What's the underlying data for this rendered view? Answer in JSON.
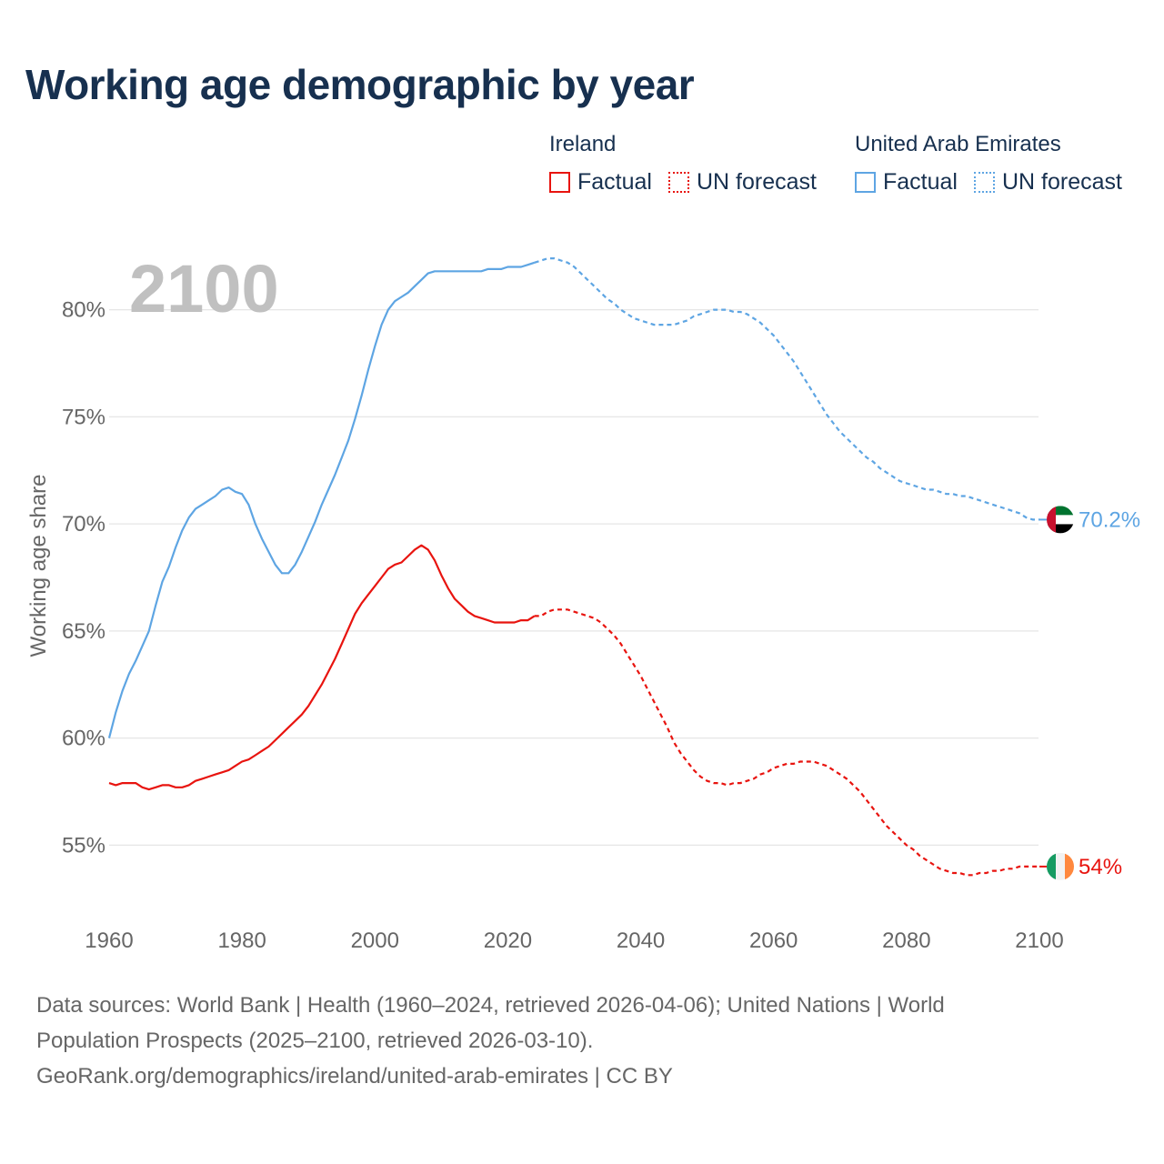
{
  "title": "Working age demographic by year",
  "legend": {
    "groups": [
      {
        "country": "Ireland",
        "factual_label": "Factual",
        "forecast_label": "UN forecast",
        "color": "#e8140f"
      },
      {
        "country": "United Arab Emirates",
        "factual_label": "Factual",
        "forecast_label": "UN forecast",
        "color": "#5ea5e3"
      }
    ]
  },
  "year_label": "2100",
  "sources": {
    "line1": "Data sources: World Bank | Health (1960–2024, retrieved 2026-04-06); United Nations | World",
    "line2": "Population Prospects (2025–2100, retrieved 2026-03-10).",
    "line3": "GeoRank.org/demographics/ireland/united-arab-emirates | CC BY"
  },
  "colors": {
    "ireland": "#e8140f",
    "uae": "#5ea5e3",
    "title": "#17304f",
    "axis_text": "#666666",
    "grid": "#e6e6e6",
    "year_watermark": "#c0c0c0"
  },
  "chart_data": {
    "type": "line",
    "title": "Working age demographic by year",
    "xlabel": "",
    "ylabel": "Working age share",
    "xlim": [
      1960,
      2100
    ],
    "ylim": [
      52,
      83
    ],
    "x_ticks": [
      1960,
      1980,
      2000,
      2020,
      2040,
      2060,
      2080,
      2100
    ],
    "x_tick_labels": [
      "1960",
      "1980",
      "2000",
      "2020",
      "2040",
      "2060",
      "2080",
      "2100"
    ],
    "y_ticks": [
      55,
      60,
      65,
      70,
      75,
      80
    ],
    "y_tick_labels": [
      "55%",
      "60%",
      "65%",
      "70%",
      "75%",
      "80%"
    ],
    "factual_end_year": 2024,
    "series": [
      {
        "name": "Ireland",
        "end_label": "54%",
        "points": [
          [
            1960,
            57.9
          ],
          [
            1961,
            57.8
          ],
          [
            1962,
            57.9
          ],
          [
            1963,
            57.9
          ],
          [
            1964,
            57.9
          ],
          [
            1965,
            57.7
          ],
          [
            1966,
            57.6
          ],
          [
            1967,
            57.7
          ],
          [
            1968,
            57.8
          ],
          [
            1969,
            57.8
          ],
          [
            1970,
            57.7
          ],
          [
            1971,
            57.7
          ],
          [
            1972,
            57.8
          ],
          [
            1973,
            58.0
          ],
          [
            1974,
            58.1
          ],
          [
            1975,
            58.2
          ],
          [
            1976,
            58.3
          ],
          [
            1977,
            58.4
          ],
          [
            1978,
            58.5
          ],
          [
            1979,
            58.7
          ],
          [
            1980,
            58.9
          ],
          [
            1981,
            59.0
          ],
          [
            1982,
            59.2
          ],
          [
            1983,
            59.4
          ],
          [
            1984,
            59.6
          ],
          [
            1985,
            59.9
          ],
          [
            1986,
            60.2
          ],
          [
            1987,
            60.5
          ],
          [
            1988,
            60.8
          ],
          [
            1989,
            61.1
          ],
          [
            1990,
            61.5
          ],
          [
            1991,
            62.0
          ],
          [
            1992,
            62.5
          ],
          [
            1993,
            63.1
          ],
          [
            1994,
            63.7
          ],
          [
            1995,
            64.4
          ],
          [
            1996,
            65.1
          ],
          [
            1997,
            65.8
          ],
          [
            1998,
            66.3
          ],
          [
            1999,
            66.7
          ],
          [
            2000,
            67.1
          ],
          [
            2001,
            67.5
          ],
          [
            2002,
            67.9
          ],
          [
            2003,
            68.1
          ],
          [
            2004,
            68.2
          ],
          [
            2005,
            68.5
          ],
          [
            2006,
            68.8
          ],
          [
            2007,
            69.0
          ],
          [
            2008,
            68.8
          ],
          [
            2009,
            68.3
          ],
          [
            2010,
            67.6
          ],
          [
            2011,
            67.0
          ],
          [
            2012,
            66.5
          ],
          [
            2013,
            66.2
          ],
          [
            2014,
            65.9
          ],
          [
            2015,
            65.7
          ],
          [
            2016,
            65.6
          ],
          [
            2017,
            65.5
          ],
          [
            2018,
            65.4
          ],
          [
            2019,
            65.4
          ],
          [
            2020,
            65.4
          ],
          [
            2021,
            65.4
          ],
          [
            2022,
            65.5
          ],
          [
            2023,
            65.5
          ],
          [
            2024,
            65.7
          ],
          [
            2025,
            65.7
          ],
          [
            2026,
            65.9
          ],
          [
            2027,
            66.0
          ],
          [
            2028,
            66.0
          ],
          [
            2029,
            66.0
          ],
          [
            2030,
            65.9
          ],
          [
            2031,
            65.8
          ],
          [
            2032,
            65.7
          ],
          [
            2033,
            65.6
          ],
          [
            2034,
            65.4
          ],
          [
            2035,
            65.1
          ],
          [
            2036,
            64.8
          ],
          [
            2037,
            64.4
          ],
          [
            2038,
            63.9
          ],
          [
            2039,
            63.4
          ],
          [
            2040,
            62.9
          ],
          [
            2041,
            62.3
          ],
          [
            2042,
            61.7
          ],
          [
            2043,
            61.1
          ],
          [
            2044,
            60.5
          ],
          [
            2045,
            59.8
          ],
          [
            2046,
            59.3
          ],
          [
            2047,
            58.9
          ],
          [
            2048,
            58.5
          ],
          [
            2049,
            58.2
          ],
          [
            2050,
            58.0
          ],
          [
            2051,
            57.9
          ],
          [
            2052,
            57.9
          ],
          [
            2053,
            57.8
          ],
          [
            2054,
            57.9
          ],
          [
            2055,
            57.9
          ],
          [
            2056,
            58.0
          ],
          [
            2057,
            58.1
          ],
          [
            2058,
            58.3
          ],
          [
            2059,
            58.4
          ],
          [
            2060,
            58.6
          ],
          [
            2061,
            58.7
          ],
          [
            2062,
            58.8
          ],
          [
            2063,
            58.8
          ],
          [
            2064,
            58.9
          ],
          [
            2065,
            58.9
          ],
          [
            2066,
            58.9
          ],
          [
            2067,
            58.8
          ],
          [
            2068,
            58.7
          ],
          [
            2069,
            58.5
          ],
          [
            2070,
            58.3
          ],
          [
            2071,
            58.1
          ],
          [
            2072,
            57.8
          ],
          [
            2073,
            57.5
          ],
          [
            2074,
            57.1
          ],
          [
            2075,
            56.7
          ],
          [
            2076,
            56.3
          ],
          [
            2077,
            55.9
          ],
          [
            2078,
            55.6
          ],
          [
            2079,
            55.3
          ],
          [
            2080,
            55.0
          ],
          [
            2081,
            54.8
          ],
          [
            2082,
            54.5
          ],
          [
            2083,
            54.3
          ],
          [
            2084,
            54.1
          ],
          [
            2085,
            53.9
          ],
          [
            2086,
            53.8
          ],
          [
            2087,
            53.7
          ],
          [
            2088,
            53.7
          ],
          [
            2089,
            53.6
          ],
          [
            2090,
            53.6
          ],
          [
            2091,
            53.7
          ],
          [
            2092,
            53.7
          ],
          [
            2093,
            53.8
          ],
          [
            2094,
            53.8
          ],
          [
            2095,
            53.9
          ],
          [
            2096,
            53.9
          ],
          [
            2097,
            54.0
          ],
          [
            2098,
            54.0
          ],
          [
            2099,
            54.0
          ],
          [
            2100,
            54.0
          ]
        ]
      },
      {
        "name": "United Arab Emirates",
        "end_label": "70.2%",
        "points": [
          [
            1960,
            60.0
          ],
          [
            1961,
            61.2
          ],
          [
            1962,
            62.2
          ],
          [
            1963,
            63.0
          ],
          [
            1964,
            63.6
          ],
          [
            1965,
            64.3
          ],
          [
            1966,
            65.0
          ],
          [
            1967,
            66.2
          ],
          [
            1968,
            67.3
          ],
          [
            1969,
            68.0
          ],
          [
            1970,
            68.9
          ],
          [
            1971,
            69.7
          ],
          [
            1972,
            70.3
          ],
          [
            1973,
            70.7
          ],
          [
            1974,
            70.9
          ],
          [
            1975,
            71.1
          ],
          [
            1976,
            71.3
          ],
          [
            1977,
            71.6
          ],
          [
            1978,
            71.7
          ],
          [
            1979,
            71.5
          ],
          [
            1980,
            71.4
          ],
          [
            1981,
            70.9
          ],
          [
            1982,
            70.0
          ],
          [
            1983,
            69.3
          ],
          [
            1984,
            68.7
          ],
          [
            1985,
            68.1
          ],
          [
            1986,
            67.7
          ],
          [
            1987,
            67.7
          ],
          [
            1988,
            68.1
          ],
          [
            1989,
            68.7
          ],
          [
            1990,
            69.4
          ],
          [
            1991,
            70.1
          ],
          [
            1992,
            70.9
          ],
          [
            1993,
            71.6
          ],
          [
            1994,
            72.3
          ],
          [
            1995,
            73.1
          ],
          [
            1996,
            73.9
          ],
          [
            1997,
            74.9
          ],
          [
            1998,
            76.0
          ],
          [
            1999,
            77.2
          ],
          [
            2000,
            78.3
          ],
          [
            2001,
            79.3
          ],
          [
            2002,
            80.0
          ],
          [
            2003,
            80.4
          ],
          [
            2004,
            80.6
          ],
          [
            2005,
            80.8
          ],
          [
            2006,
            81.1
          ],
          [
            2007,
            81.4
          ],
          [
            2008,
            81.7
          ],
          [
            2009,
            81.8
          ],
          [
            2010,
            81.8
          ],
          [
            2011,
            81.8
          ],
          [
            2012,
            81.8
          ],
          [
            2013,
            81.8
          ],
          [
            2014,
            81.8
          ],
          [
            2015,
            81.8
          ],
          [
            2016,
            81.8
          ],
          [
            2017,
            81.9
          ],
          [
            2018,
            81.9
          ],
          [
            2019,
            81.9
          ],
          [
            2020,
            82.0
          ],
          [
            2021,
            82.0
          ],
          [
            2022,
            82.0
          ],
          [
            2023,
            82.1
          ],
          [
            2024,
            82.2
          ],
          [
            2025,
            82.3
          ],
          [
            2026,
            82.4
          ],
          [
            2027,
            82.4
          ],
          [
            2028,
            82.3
          ],
          [
            2029,
            82.2
          ],
          [
            2030,
            82.0
          ],
          [
            2031,
            81.7
          ],
          [
            2032,
            81.4
          ],
          [
            2033,
            81.1
          ],
          [
            2034,
            80.8
          ],
          [
            2035,
            80.5
          ],
          [
            2036,
            80.3
          ],
          [
            2037,
            80.0
          ],
          [
            2038,
            79.8
          ],
          [
            2039,
            79.6
          ],
          [
            2040,
            79.5
          ],
          [
            2041,
            79.4
          ],
          [
            2042,
            79.3
          ],
          [
            2043,
            79.3
          ],
          [
            2044,
            79.3
          ],
          [
            2045,
            79.3
          ],
          [
            2046,
            79.4
          ],
          [
            2047,
            79.5
          ],
          [
            2048,
            79.7
          ],
          [
            2049,
            79.8
          ],
          [
            2050,
            79.9
          ],
          [
            2051,
            80.0
          ],
          [
            2052,
            80.0
          ],
          [
            2053,
            80.0
          ],
          [
            2054,
            79.9
          ],
          [
            2055,
            79.9
          ],
          [
            2056,
            79.8
          ],
          [
            2057,
            79.6
          ],
          [
            2058,
            79.4
          ],
          [
            2059,
            79.1
          ],
          [
            2060,
            78.8
          ],
          [
            2061,
            78.4
          ],
          [
            2062,
            78.0
          ],
          [
            2063,
            77.6
          ],
          [
            2064,
            77.1
          ],
          [
            2065,
            76.6
          ],
          [
            2066,
            76.1
          ],
          [
            2067,
            75.6
          ],
          [
            2068,
            75.1
          ],
          [
            2069,
            74.7
          ],
          [
            2070,
            74.3
          ],
          [
            2071,
            74.0
          ],
          [
            2072,
            73.7
          ],
          [
            2073,
            73.4
          ],
          [
            2074,
            73.1
          ],
          [
            2075,
            72.9
          ],
          [
            2076,
            72.6
          ],
          [
            2077,
            72.4
          ],
          [
            2078,
            72.2
          ],
          [
            2079,
            72.0
          ],
          [
            2080,
            71.9
          ],
          [
            2081,
            71.8
          ],
          [
            2082,
            71.7
          ],
          [
            2083,
            71.6
          ],
          [
            2084,
            71.6
          ],
          [
            2085,
            71.5
          ],
          [
            2086,
            71.4
          ],
          [
            2087,
            71.4
          ],
          [
            2088,
            71.3
          ],
          [
            2089,
            71.3
          ],
          [
            2090,
            71.2
          ],
          [
            2091,
            71.1
          ],
          [
            2092,
            71.0
          ],
          [
            2093,
            70.9
          ],
          [
            2094,
            70.8
          ],
          [
            2095,
            70.7
          ],
          [
            2096,
            70.6
          ],
          [
            2097,
            70.5
          ],
          [
            2098,
            70.3
          ],
          [
            2099,
            70.2
          ],
          [
            2100,
            70.2
          ]
        ]
      }
    ]
  }
}
